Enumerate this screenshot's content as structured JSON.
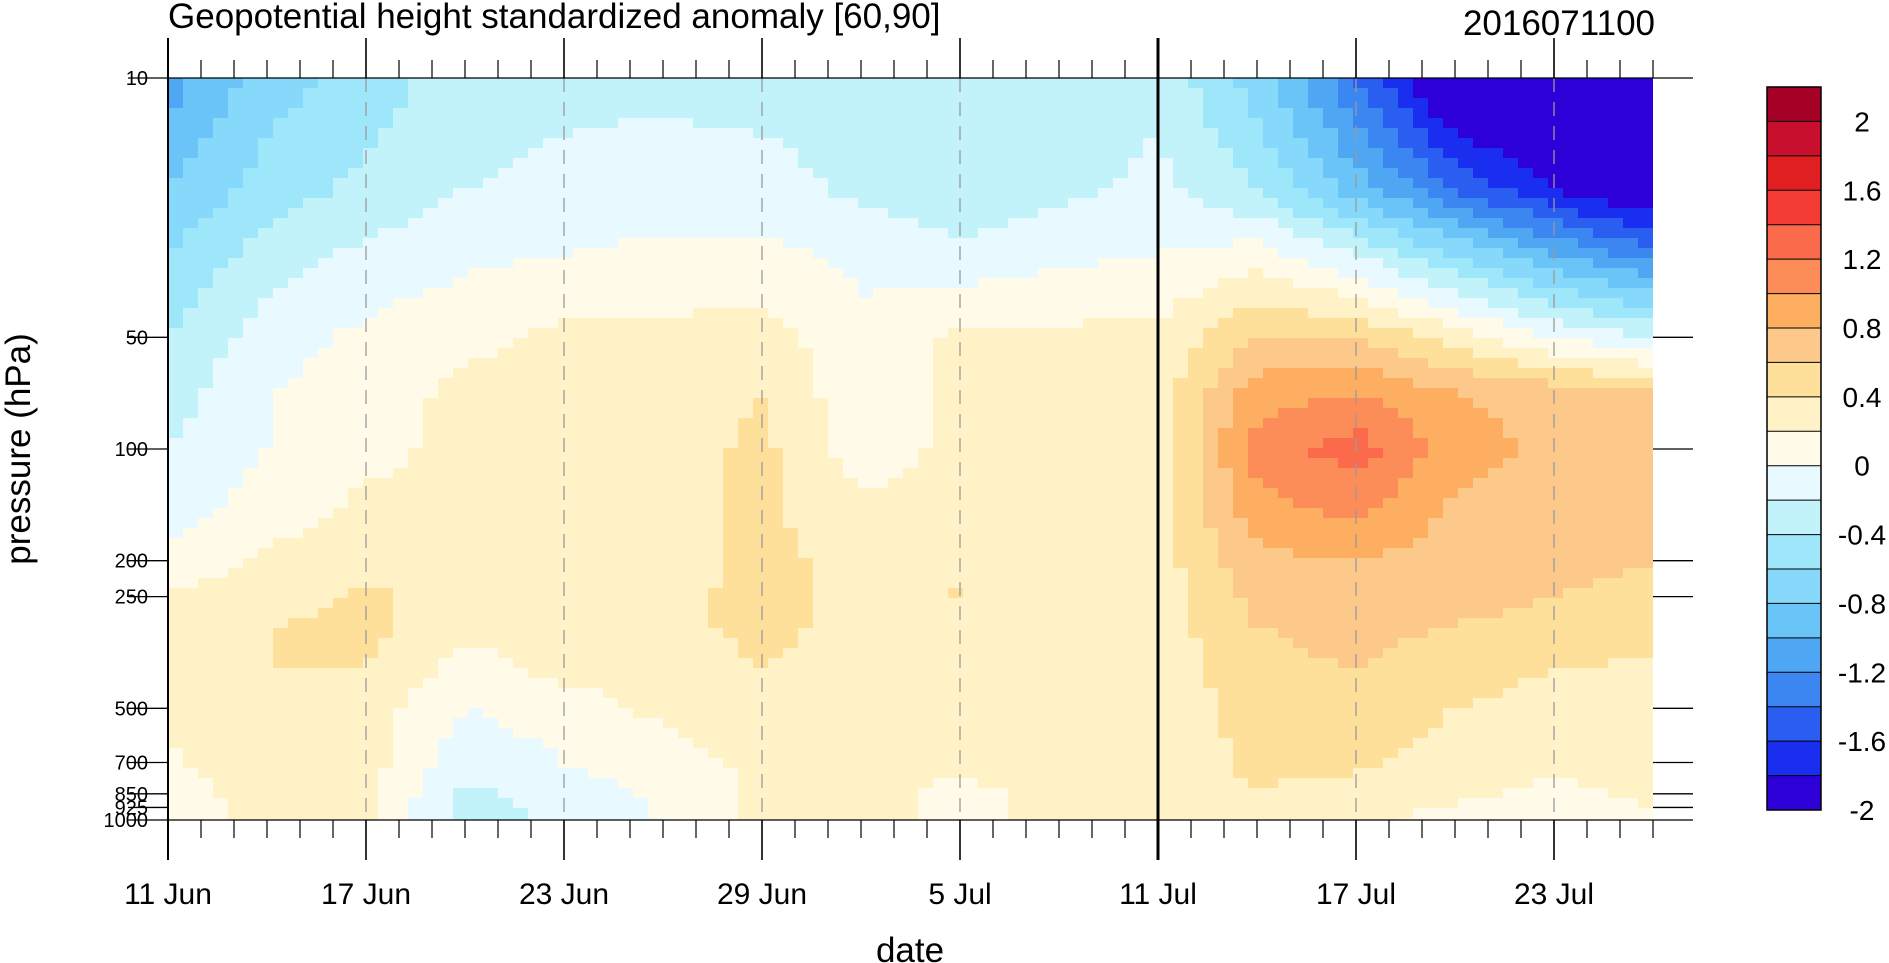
{
  "chart_data": {
    "type": "heatmap",
    "title": "Geopotential height standardized anomaly [60,90]",
    "subtitle": "2016071100",
    "xlabel": "date",
    "ylabel": "pressure (hPa)",
    "x_tick_labels": [
      "11 Jun",
      "17 Jun",
      "23 Jun",
      "29 Jun",
      "5 Jul",
      "11 Jul",
      "17 Jul",
      "23 Jul"
    ],
    "x_tick_days": [
      0,
      6,
      12,
      18,
      24,
      30,
      36,
      42
    ],
    "x_range_days": [
      0,
      45
    ],
    "vertical_marker_day": 30,
    "y_tick_labels": [
      "10",
      "50",
      "100",
      "200",
      "250",
      "500",
      "700",
      "850",
      "925",
      "1000"
    ],
    "y_tick_values": [
      10,
      50,
      100,
      200,
      250,
      500,
      700,
      850,
      925,
      1000
    ],
    "y_range": [
      10,
      1000
    ],
    "y_scale": "log",
    "grid": "dashed vertical lines at labeled dates",
    "colorbar": {
      "labels": [
        "2",
        "1.6",
        "1.2",
        "0.8",
        "0.4",
        "0",
        "-0.4",
        "-0.8",
        "-1.2",
        "-1.6",
        "-2"
      ],
      "levels": [
        -2.2,
        -2.0,
        -1.8,
        -1.6,
        -1.4,
        -1.2,
        -1.0,
        -0.8,
        -0.6,
        -0.4,
        -0.2,
        0,
        0.2,
        0.4,
        0.6,
        0.8,
        1.0,
        1.2,
        1.4,
        1.6,
        1.8,
        2.0,
        2.2
      ],
      "colors_top_to_bottom": [
        "#a50026",
        "#c8102e",
        "#e02020",
        "#f23c34",
        "#fb6a4a",
        "#fc8d59",
        "#fdae61",
        "#fdc98a",
        "#fee09b",
        "#fff2c6",
        "#fffbe8",
        "#e8faff",
        "#c2f2fa",
        "#9ee7fa",
        "#86d9fa",
        "#6bc4f7",
        "#4fa6f3",
        "#3b86f0",
        "#2a5ef0",
        "#1a2ef0",
        "#2e00d8"
      ]
    },
    "field": {
      "levels_hpa": [
        10,
        20,
        30,
        50,
        70,
        100,
        150,
        200,
        250,
        300,
        400,
        500,
        700,
        850,
        1000
      ],
      "days": [
        0,
        3,
        6,
        9,
        12,
        15,
        18,
        21,
        24,
        27,
        30,
        33,
        36,
        39,
        42,
        45
      ],
      "values": [
        [
          -1.3,
          -0.9,
          -0.7,
          -0.5,
          -0.45,
          -0.45,
          -0.5,
          -0.55,
          -0.6,
          -0.55,
          -0.45,
          -0.9,
          -1.6,
          -2.4,
          -2.6,
          -2.8
        ],
        [
          -1.0,
          -0.7,
          -0.55,
          -0.4,
          -0.35,
          -0.3,
          -0.3,
          -0.45,
          -0.55,
          -0.45,
          -0.35,
          -0.6,
          -1.1,
          -1.6,
          -2.0,
          -2.3
        ],
        [
          -0.8,
          -0.5,
          -0.35,
          -0.25,
          -0.2,
          -0.15,
          -0.15,
          -0.25,
          -0.35,
          -0.25,
          -0.2,
          -0.1,
          -0.4,
          -0.8,
          -1.2,
          -1.5
        ],
        [
          -0.6,
          -0.3,
          -0.15,
          -0.05,
          0.05,
          0.05,
          0.1,
          -0.15,
          0.05,
          0.05,
          0.05,
          0.4,
          0.4,
          0.1,
          -0.2,
          -0.4
        ],
        [
          -0.5,
          -0.2,
          -0.1,
          0.05,
          0.05,
          0.1,
          0.2,
          -0.15,
          0.05,
          0.05,
          0.1,
          0.7,
          0.8,
          0.6,
          0.5,
          0.4
        ],
        [
          -0.4,
          -0.2,
          -0.05,
          0.05,
          0.1,
          0.1,
          0.25,
          -0.1,
          0.05,
          0.1,
          0.1,
          0.9,
          1.1,
          0.7,
          0.55,
          0.5
        ],
        [
          -0.3,
          -0.1,
          0.05,
          0.05,
          0.1,
          0.1,
          0.25,
          0.05,
          0.05,
          0.1,
          0.1,
          0.7,
          0.85,
          0.55,
          0.5,
          0.45
        ],
        [
          -0.15,
          0.05,
          0.1,
          0.05,
          0.1,
          0.1,
          0.25,
          0.15,
          0.1,
          0.1,
          0.1,
          0.55,
          0.6,
          0.5,
          0.45,
          0.4
        ],
        [
          0.05,
          0.1,
          0.25,
          0.1,
          0.1,
          0.15,
          0.25,
          0.15,
          0.22,
          0.1,
          0.1,
          0.45,
          0.5,
          0.45,
          0.4,
          0.35
        ],
        [
          0.05,
          0.2,
          0.25,
          0.05,
          0.1,
          0.15,
          0.25,
          0.15,
          0.1,
          0.1,
          0.1,
          0.4,
          0.45,
          0.4,
          0.35,
          0.3
        ],
        [
          0.05,
          0.2,
          0.2,
          -0.1,
          0.05,
          0.1,
          0.2,
          0.1,
          0.05,
          0.05,
          0.05,
          0.35,
          0.4,
          0.3,
          0.2,
          0.15
        ],
        [
          0.05,
          0.2,
          0.1,
          -0.2,
          -0.1,
          0.05,
          0.15,
          0.1,
          0.05,
          0.05,
          0.05,
          0.3,
          0.35,
          0.2,
          0.1,
          0.05
        ],
        [
          -0.05,
          0.2,
          0.1,
          -0.35,
          -0.2,
          -0.1,
          0.05,
          0.05,
          0.05,
          0.05,
          0.05,
          0.25,
          0.25,
          0.1,
          0.05,
          0.05
        ],
        [
          -0.15,
          0.15,
          0.05,
          -0.45,
          -0.3,
          -0.15,
          0.05,
          0.05,
          -0.05,
          0.05,
          0.05,
          0.2,
          0.1,
          0.05,
          -0.05,
          0.05
        ],
        [
          -0.2,
          0.1,
          0.05,
          -0.5,
          -0.35,
          -0.2,
          0.05,
          0.05,
          -0.05,
          0.05,
          0.05,
          0.1,
          0.05,
          -0.1,
          -0.1,
          -0.05
        ]
      ]
    }
  }
}
